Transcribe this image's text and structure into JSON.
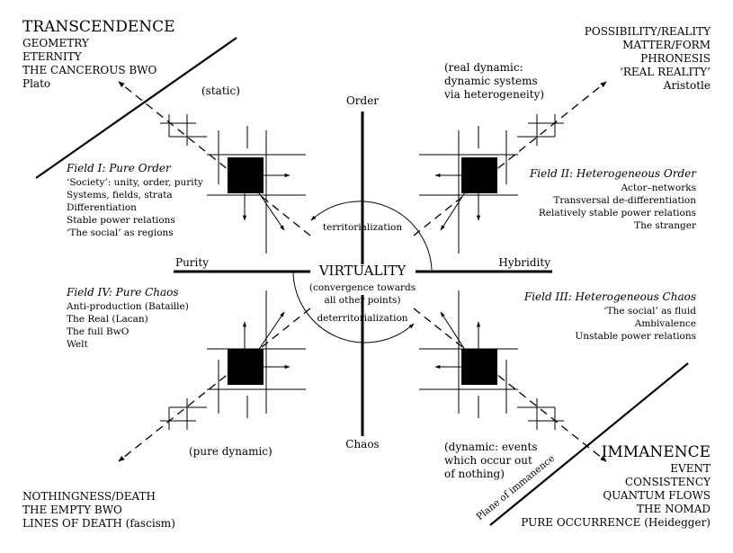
{
  "corners": {
    "top_left": {
      "heading": "TRANSCENDENCE",
      "items": [
        "GEOMETRY",
        "ETERNITY",
        "THE CANCEROUS BWO",
        "Plato"
      ]
    },
    "top_right": {
      "items": [
        "POSSIBILITY/REALITY",
        "MATTER/FORM",
        "PHRONESIS",
        "‘REAL REALITY’",
        "Aristotle"
      ]
    },
    "bottom_left": {
      "items": [
        "NOTHINGNESS/DEATH",
        "THE EMPTY BWO",
        "LINES OF DEATH (fascism)"
      ]
    },
    "bottom_right": {
      "heading": "IMMANENCE",
      "items": [
        "EVENT",
        "CONSISTENCY",
        "QUANTUM FLOWS",
        "THE NOMAD",
        "PURE OCCURRENCE (Heidegger)"
      ]
    }
  },
  "dynamics": {
    "static": "(static)",
    "real_dynamic": [
      "(real dynamic:",
      "dynamic systems",
      "via heterogeneity)"
    ],
    "pure_dynamic": "(pure dynamic)",
    "dynamic_events": [
      "(dynamic: events",
      "which occur out",
      "of nothing)"
    ]
  },
  "fields": {
    "f1": {
      "title": "Field I: Pure Order",
      "items": [
        "‘Society’: unity, order, purity",
        "Systems, fields, strata",
        "Differentiation",
        "Stable power relations",
        "‘The social’ as regions"
      ]
    },
    "f2": {
      "title": "Field II: Heterogeneous Order",
      "items": [
        "Actor–networks",
        "Transversal de-differentiation",
        "Relatively stable power relations",
        "The stranger"
      ]
    },
    "f3": {
      "title": "Field III: Heterogeneous Chaos",
      "items": [
        "‘The social’ as fluid",
        "Ambivalence",
        "Unstable power relations"
      ]
    },
    "f4": {
      "title": "Field IV: Pure Chaos",
      "items": [
        "Anti-production (Bataille)",
        "The Real (Lacan)",
        "The full BwO",
        "Welt"
      ]
    }
  },
  "axes": {
    "order": "Order",
    "chaos": "Chaos",
    "purity": "Purity",
    "hybridity": "Hybridity"
  },
  "center": {
    "title": "VIRTUALITY",
    "sub": [
      "(convergence towards",
      "all other points)"
    ],
    "territorialization": "territorialization",
    "deterritorialization": "deterritorialization"
  },
  "plane": "Plane of immanence"
}
